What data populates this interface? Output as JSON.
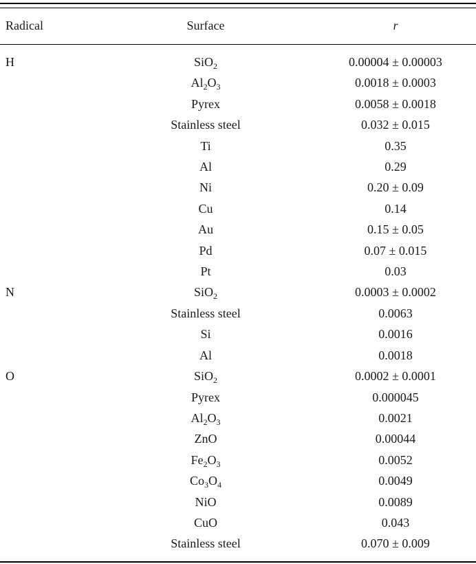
{
  "table": {
    "headers": {
      "radical": "Radical",
      "surface": "Surface",
      "r": "r"
    },
    "rows": [
      {
        "radical": "H",
        "surface": "SiO",
        "surface_sub": "2",
        "r": "0.00004 ± 0.00003"
      },
      {
        "radical": "",
        "surface": "Al",
        "surface_sub": "2",
        "surface2": "O",
        "surface_sub2": "3",
        "r": "0.0018 ± 0.0003"
      },
      {
        "radical": "",
        "surface": "Pyrex",
        "r": "0.0058 ± 0.0018"
      },
      {
        "radical": "",
        "surface": "Stainless steel",
        "r": "0.032 ± 0.015"
      },
      {
        "radical": "",
        "surface": "Ti",
        "r": "0.35"
      },
      {
        "radical": "",
        "surface": "Al",
        "r": "0.29"
      },
      {
        "radical": "",
        "surface": "Ni",
        "r": "0.20 ± 0.09"
      },
      {
        "radical": "",
        "surface": "Cu",
        "r": "0.14"
      },
      {
        "radical": "",
        "surface": "Au",
        "r": "0.15 ± 0.05"
      },
      {
        "radical": "",
        "surface": "Pd",
        "r": "0.07 ± 0.015"
      },
      {
        "radical": "",
        "surface": "Pt",
        "r": "0.03"
      },
      {
        "radical": "N",
        "surface": "SiO",
        "surface_sub": "2",
        "r": "0.0003 ± 0.0002"
      },
      {
        "radical": "",
        "surface": "Stainless steel",
        "r": "0.0063"
      },
      {
        "radical": "",
        "surface": "Si",
        "r": "0.0016"
      },
      {
        "radical": "",
        "surface": "Al",
        "r": "0.0018"
      },
      {
        "radical": "O",
        "surface": "SiO",
        "surface_sub": "2",
        "r": "0.0002 ± 0.0001"
      },
      {
        "radical": "",
        "surface": "Pyrex",
        "r": "0.000045"
      },
      {
        "radical": "",
        "surface": "Al",
        "surface_sub": "2",
        "surface2": "O",
        "surface_sub2": "3",
        "r": "0.0021"
      },
      {
        "radical": "",
        "surface": "ZnO",
        "r": "0.00044"
      },
      {
        "radical": "",
        "surface": "Fe",
        "surface_sub": "2",
        "surface2": "O",
        "surface_sub2": "3",
        "r": "0.0052"
      },
      {
        "radical": "",
        "surface": "Co",
        "surface_sub": "3",
        "surface2": "O",
        "surface_sub2": "4",
        "r": "0.0049"
      },
      {
        "radical": "",
        "surface": "NiO",
        "r": "0.0089"
      },
      {
        "radical": "",
        "surface": "CuO",
        "r": "0.043"
      },
      {
        "radical": "",
        "surface": "Stainless steel",
        "r": "0.070 ± 0.009"
      }
    ]
  }
}
